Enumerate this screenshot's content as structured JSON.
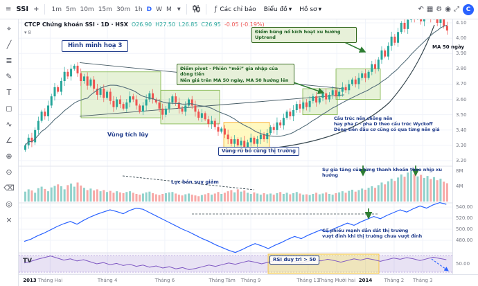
{
  "icons": {
    "menu": "≡",
    "plus": "+",
    "search": "⌕",
    "chevron_down": "▾",
    "fx": "ƒ"
  },
  "topbar": {
    "symbol": "SSI",
    "timeframes": [
      "1m",
      "5m",
      "10m",
      "15m",
      "30m",
      "1h",
      "D",
      "W",
      "M"
    ],
    "active_timeframe": "D",
    "indicators_label": "Các chỉ báo",
    "templates_label": "Biểu đồ",
    "profile_label": "Hồ sơ",
    "right_icons": [
      {
        "name": "undo-icon",
        "glyph": "↶"
      },
      {
        "name": "layout-grid-icon",
        "glyph": "▦"
      },
      {
        "name": "settings-icon",
        "glyph": "⚙"
      },
      {
        "name": "snapshot-icon",
        "glyph": "◉"
      },
      {
        "name": "fullscreen-icon",
        "glyph": "⤢"
      }
    ],
    "avatar": "C"
  },
  "left_toolbar": {
    "tools": [
      {
        "name": "crosshair-icon",
        "glyph": "⌖"
      },
      {
        "name": "trendline-icon",
        "glyph": "╱"
      },
      {
        "name": "fib-retracement-icon",
        "glyph": "≣"
      },
      {
        "name": "brush-icon",
        "glyph": "✎"
      },
      {
        "name": "text-icon",
        "glyph": "T"
      },
      {
        "name": "shapes-icon",
        "glyph": "◻"
      },
      {
        "name": "pattern-icon",
        "glyph": "∿"
      },
      {
        "name": "measure-icon",
        "glyph": "∠"
      },
      {
        "name": "zoom-icon",
        "glyph": "⊕"
      },
      {
        "name": "magnet-icon",
        "glyph": "⊙"
      },
      {
        "name": "eraser-icon",
        "glyph": "⌫"
      },
      {
        "name": "show-hide-icon",
        "glyph": "◎"
      },
      {
        "name": "remove-drawings-icon",
        "glyph": "×"
      }
    ]
  },
  "legend": {
    "symbol": "CTCP Chứng khoán SSI · 1D · HSX",
    "o": "O26.90",
    "h": "H27.50",
    "l": "L26.85",
    "c": "C26.95",
    "change": "-0.05 (-0.19%)",
    "indicator_count": "8"
  },
  "annotations": {
    "illustration_title": "Hình minh hoạ 3",
    "breakout_callout": "Điểm bùng nổ kích hoạt xu hướng Uptrend",
    "pivot_callout_line1": "Điểm pivot - Phiên “mồi” gia nhập của dòng tiền",
    "pivot_callout_line2": "Nền giá trên MA 50 ngày, MA 50 hướng lên",
    "ma_label": "MA 50 ngày",
    "wyckoff_line1": "Cấu trúc nền chồng nền",
    "wyckoff_line2": "hay pha C - pha D theo cấu trúc Wyckoff",
    "wyckoff_line3": "Dòng tiền đầu cơ cũng có qua từng nền giá",
    "accumulation_label": "Vùng tích lũy",
    "shakeout_label": "Vùng rũ bỏ cùng thị trường",
    "selling_pressure_label": "Lực bán suy giảm",
    "liquidity_label": "Sự gia tăng của từng thanh khoản theo nhịp xu hướng",
    "leader_line1": "Cổ phiếu mạnh dẫn dắt thị trường",
    "leader_line2": "vượt đỉnh khi thị trường chưa vượt đỉnh",
    "rsi_label": "RSI duy trì > 50"
  },
  "axes": {
    "price": [
      {
        "label": "4.10",
        "value": 4.1
      },
      {
        "label": "4.00",
        "value": 4.0
      },
      {
        "label": "3.90",
        "value": 3.9
      },
      {
        "label": "3.80",
        "value": 3.8
      },
      {
        "label": "3.70",
        "value": 3.7
      },
      {
        "label": "3.60",
        "value": 3.6
      },
      {
        "label": "3.50",
        "value": 3.5
      },
      {
        "label": "3.40",
        "value": 3.4
      },
      {
        "label": "3.30",
        "value": 3.3
      },
      {
        "label": "3.20",
        "value": 3.2
      }
    ],
    "volume": [
      {
        "label": "8M",
        "value": 8
      },
      {
        "label": "4M",
        "value": 4
      }
    ],
    "index": [
      {
        "label": "540.00",
        "value": 540
      },
      {
        "label": "520.00",
        "value": 520
      },
      {
        "label": "500.00",
        "value": 500
      },
      {
        "label": "480.00",
        "value": 480
      }
    ],
    "rsi": [
      {
        "label": "50.00",
        "value": 50
      }
    ]
  },
  "time_axis": {
    "labels": [
      {
        "label": "2013",
        "m": 0,
        "major": true
      },
      {
        "label": "Tháng Hai",
        "m": 1,
        "major": false
      },
      {
        "label": "Tháng 4",
        "m": 3,
        "major": false
      },
      {
        "label": "Tháng 6",
        "m": 5,
        "major": false
      },
      {
        "label": "Tháng Tám",
        "m": 7,
        "major": false
      },
      {
        "label": "Tháng 9",
        "m": 8,
        "major": false
      },
      {
        "label": "Tháng 11",
        "m": 10,
        "major": false
      },
      {
        "label": "Tháng Mười hai",
        "m": 11,
        "major": false
      },
      {
        "label": "2014",
        "m": 12,
        "major": true
      },
      {
        "label": "Tháng 2",
        "m": 13,
        "major": false
      },
      {
        "label": "Tháng 3",
        "m": 14,
        "major": false
      }
    ]
  },
  "chart_data": [
    {
      "name": "price",
      "type": "candlestick",
      "title": "CTCP Chứng khoán SSI · 1D · HSX",
      "ylim": [
        3.2,
        4.1
      ],
      "closes": [
        3.3,
        3.35,
        3.32,
        3.4,
        3.46,
        3.52,
        3.49,
        3.56,
        3.62,
        3.68,
        3.65,
        3.72,
        3.78,
        3.75,
        3.8,
        3.82,
        3.77,
        3.72,
        3.75,
        3.69,
        3.73,
        3.67,
        3.63,
        3.67,
        3.61,
        3.65,
        3.59,
        3.55,
        3.6,
        3.57,
        3.54,
        3.58,
        3.62,
        3.6,
        3.56,
        3.52,
        3.56,
        3.6,
        3.64,
        3.6,
        3.58,
        3.54,
        3.5,
        3.54,
        3.58,
        3.62,
        3.58,
        3.54,
        3.52,
        3.56,
        3.6,
        3.56,
        3.52,
        3.48,
        3.51,
        3.47,
        3.44,
        3.46,
        3.42,
        3.39,
        3.41,
        3.37,
        3.34,
        3.31,
        3.34,
        3.3,
        3.33,
        3.29,
        3.32,
        3.35,
        3.31,
        3.34,
        3.37,
        3.34,
        3.38,
        3.42,
        3.4,
        3.45,
        3.43,
        3.48,
        3.52,
        3.49,
        3.53,
        3.57,
        3.54,
        3.58,
        3.55,
        3.59,
        3.62,
        3.58,
        3.61,
        3.64,
        3.6,
        3.63,
        3.66,
        3.62,
        3.65,
        3.68,
        3.66,
        3.7,
        3.73,
        3.7,
        3.74,
        3.77,
        3.74,
        3.78,
        3.83,
        3.8,
        3.86,
        3.92,
        3.88,
        3.95,
        4.01,
        3.97,
        4.04,
        4.1,
        4.06,
        4.12,
        4.17,
        4.13,
        4.16,
        4.11,
        4.15,
        4.18,
        4.13,
        4.16,
        4.1,
        4.14,
        4.08,
        4.05
      ]
    },
    {
      "name": "volume",
      "type": "bar",
      "unit": "M",
      "ylim": [
        0,
        8
      ],
      "values": [
        2.6,
        3.2,
        2.9,
        2.3,
        3.5,
        3.9,
        3.3,
        2.7,
        3.7,
        4.1,
        4.5,
        4.0,
        3.2,
        4.3,
        4.7,
        3.9,
        5.0,
        4.2,
        3.6,
        3.0,
        3.4,
        2.9,
        3.2,
        2.7,
        3.0,
        2.5,
        2.8,
        2.3,
        2.7,
        2.4,
        2.2,
        2.5,
        2.7,
        2.3,
        2.0,
        1.8,
        2.1,
        2.4,
        2.6,
        2.2,
        1.9,
        1.7,
        2.0,
        2.2,
        2.4,
        2.5,
        2.1,
        1.8,
        1.6,
        1.9,
        2.1,
        1.8,
        1.6,
        1.4,
        1.7,
        1.9,
        2.2,
        1.8,
        2.1,
        2.5,
        2.0,
        2.3,
        2.7,
        3.0,
        2.4,
        3.2,
        2.6,
        2.9,
        2.3,
        2.0,
        2.4,
        2.1,
        1.8,
        2.2,
        1.9,
        2.1,
        1.8,
        2.2,
        2.5,
        2.0,
        2.3,
        1.9,
        2.2,
        2.5,
        2.1,
        1.8,
        1.9,
        1.7,
        2.0,
        2.3,
        1.9,
        2.1,
        2.4,
        2.0,
        1.8,
        2.2,
        2.4,
        2.7,
        2.3,
        2.8,
        3.1,
        2.6,
        3.0,
        3.4,
        3.1,
        3.6,
        4.0,
        3.6,
        4.3,
        5.0,
        4.5,
        5.3,
        6.0,
        5.4,
        6.3,
        7.1,
        6.5,
        7.6,
        8.0,
        7.2,
        6.6,
        7.0,
        6.2,
        6.7,
        5.9,
        6.4,
        5.6,
        6.0,
        5.2,
        4.8
      ]
    },
    {
      "name": "index",
      "type": "line",
      "ylim": [
        458,
        548
      ],
      "values": [
        478,
        482,
        488,
        493,
        499,
        505,
        510,
        514,
        509,
        516,
        522,
        527,
        531,
        535,
        532,
        528,
        534,
        538,
        536,
        530,
        524,
        518,
        512,
        506,
        500,
        495,
        489,
        483,
        478,
        472,
        467,
        462,
        458,
        463,
        469,
        474,
        470,
        465,
        471,
        476,
        482,
        487,
        483,
        489,
        494,
        499,
        495,
        501,
        506,
        511,
        507,
        513,
        518,
        523,
        519,
        525,
        530,
        535,
        531,
        537,
        542,
        538,
        544,
        548,
        545
      ]
    },
    {
      "name": "rsi",
      "type": "line",
      "ylim": [
        0,
        100
      ],
      "band": [
        30,
        70
      ],
      "values": [
        52,
        56,
        61,
        65,
        69,
        64,
        59,
        62,
        57,
        60,
        55,
        50,
        53,
        48,
        51,
        46,
        49,
        44,
        47,
        42,
        45,
        40,
        43,
        38,
        41,
        36,
        39,
        43,
        47,
        44,
        48,
        52,
        49,
        53,
        57,
        54,
        50,
        54,
        58,
        55,
        59,
        56,
        52,
        56,
        60,
        57,
        61,
        58,
        54,
        58,
        62,
        59,
        63,
        60,
        56,
        60,
        64,
        61,
        65,
        62,
        58,
        62,
        66,
        63,
        60
      ]
    }
  ]
}
